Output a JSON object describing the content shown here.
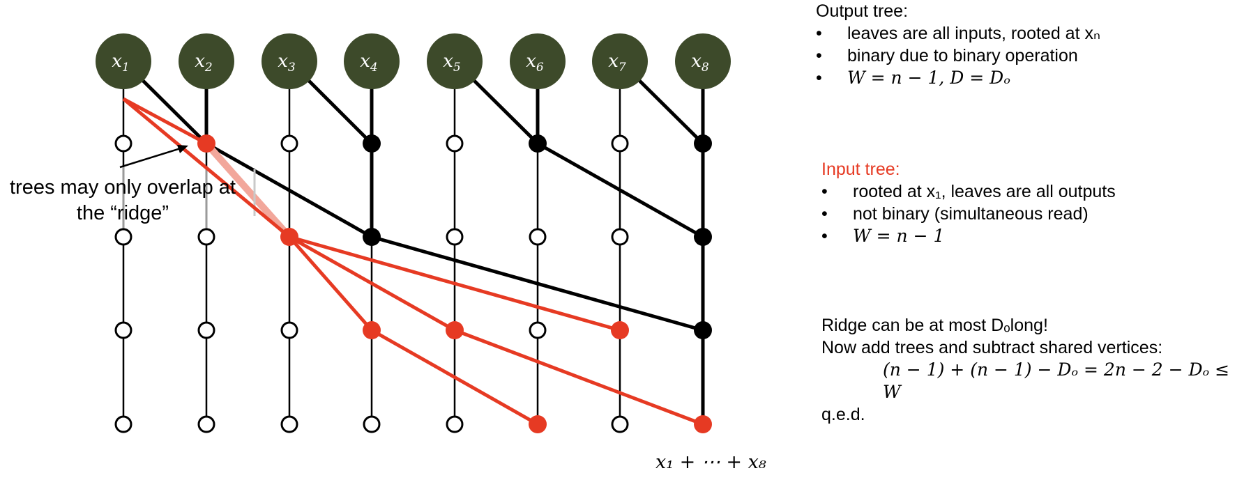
{
  "inputs": [
    "x1",
    "x2",
    "x3",
    "x4",
    "x5",
    "x6",
    "x7",
    "x8"
  ],
  "colors": {
    "node_fill": "#3d4a2a",
    "input_tree": "#e63a23",
    "output_tree": "#000000",
    "faded_red": "#f2a79b"
  },
  "output_panel": {
    "title": "Output tree:",
    "bullets": [
      "leaves are all inputs, rooted at xₙ",
      "binary due to binary operation",
      "W = n − 1, D = Dₒ"
    ]
  },
  "input_panel": {
    "title": "Input tree:",
    "bullets": [
      "rooted at x₁, leaves are all outputs",
      "not binary (simultaneous read)",
      "W = n − 1"
    ]
  },
  "ridge_panel": {
    "line1": "Ridge can be at most Dₒlong!",
    "line2": "Now add trees and subtract shared vertices:",
    "equation": "(n − 1) + (n − 1) − Dₒ = 2n − 2 − Dₒ ≤ W",
    "line4": "q.e.d."
  },
  "annotation": "trees may only overlap at the “ridge”",
  "sum_label": "x₁ + ⋯ + x₈"
}
